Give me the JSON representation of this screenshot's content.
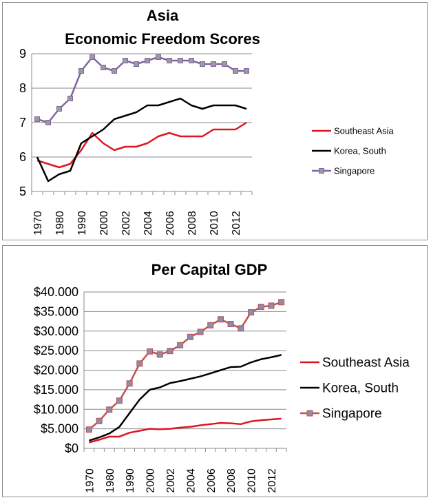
{
  "chart_data": [
    {
      "type": "line",
      "title_lines": [
        "Asia",
        "Economic Freedom Scores"
      ],
      "xlabel": "",
      "ylabel": "",
      "ylim": [
        5,
        9
      ],
      "yticks": [
        5,
        6,
        7,
        8,
        9
      ],
      "y_tick_labels": [
        "5",
        "6",
        "7",
        "8",
        "9"
      ],
      "x": [
        1970,
        1975,
        1980,
        1985,
        1990,
        1995,
        2000,
        2001,
        2002,
        2003,
        2004,
        2005,
        2006,
        2007,
        2008,
        2009,
        2010,
        2011,
        2012,
        2013
      ],
      "x_tick_labels": [
        "1970",
        "1980",
        "1990",
        "2000",
        "2002",
        "2004",
        "2006",
        "2008",
        "2010",
        "2012"
      ],
      "legend_position": "right",
      "series": [
        {
          "name": "Southeast Asia",
          "color": "#e0141e",
          "marker": "none",
          "values": [
            5.9,
            5.8,
            5.7,
            5.8,
            6.2,
            6.7,
            6.4,
            6.2,
            6.3,
            6.3,
            6.4,
            6.6,
            6.7,
            6.6,
            6.6,
            6.6,
            6.8,
            6.8,
            6.8,
            7.0
          ]
        },
        {
          "name": "Korea, South",
          "color": "#000000",
          "marker": "none",
          "values": [
            6.0,
            5.3,
            5.5,
            5.6,
            6.4,
            6.6,
            6.8,
            7.1,
            7.2,
            7.3,
            7.5,
            7.5,
            7.6,
            7.7,
            7.5,
            7.4,
            7.5,
            7.5,
            7.5,
            7.4
          ]
        },
        {
          "name": "Singapore",
          "color": "#8064a2",
          "marker": "square",
          "marker_color": "#9b9b9b",
          "values": [
            7.1,
            7.0,
            7.4,
            7.7,
            8.5,
            8.9,
            8.6,
            8.5,
            8.8,
            8.7,
            8.8,
            8.9,
            8.8,
            8.8,
            8.8,
            8.7,
            8.7,
            8.7,
            8.5,
            8.5
          ]
        }
      ]
    },
    {
      "type": "line",
      "title_lines": [
        "Per Capital GDP"
      ],
      "xlabel": "",
      "ylabel": "",
      "ylim": [
        0,
        40000
      ],
      "yticks": [
        0,
        5000,
        10000,
        15000,
        20000,
        25000,
        30000,
        35000,
        40000
      ],
      "y_tick_labels": [
        "$0",
        "$5.000",
        "$10.000",
        "$15.000",
        "$20.000",
        "$25.000",
        "$30.000",
        "$35.000",
        "$40.000"
      ],
      "x": [
        1970,
        1975,
        1980,
        1985,
        1990,
        1995,
        2000,
        2001,
        2002,
        2003,
        2004,
        2005,
        2006,
        2007,
        2008,
        2009,
        2010,
        2011,
        2012,
        2013
      ],
      "x_tick_labels": [
        "1970",
        "1980",
        "1990",
        "2000",
        "2002",
        "2004",
        "2006",
        "2008",
        "2010",
        "2012"
      ],
      "legend_position": "right",
      "series": [
        {
          "name": "Southeast Asia",
          "color": "#e0141e",
          "marker": "none",
          "values": [
            1500,
            2200,
            3000,
            3000,
            4000,
            4500,
            5000,
            4900,
            5000,
            5300,
            5500,
            5900,
            6200,
            6500,
            6400,
            6200,
            6900,
            7200,
            7400,
            7600
          ]
        },
        {
          "name": "Korea, South",
          "color": "#000000",
          "marker": "none",
          "values": [
            2000,
            2800,
            3800,
            5500,
            9000,
            12500,
            15000,
            15600,
            16700,
            17200,
            17800,
            18400,
            19200,
            20000,
            20800,
            20900,
            22000,
            22800,
            23300,
            23900
          ]
        },
        {
          "name": "Singapore",
          "color": "#c0504d",
          "marker": "square",
          "marker_color": "#8c8cac",
          "values": [
            4800,
            7000,
            9900,
            12200,
            16600,
            21700,
            24800,
            24000,
            24900,
            26400,
            28500,
            29800,
            31500,
            33000,
            31800,
            30700,
            34800,
            36200,
            36500,
            37400
          ]
        }
      ]
    }
  ]
}
